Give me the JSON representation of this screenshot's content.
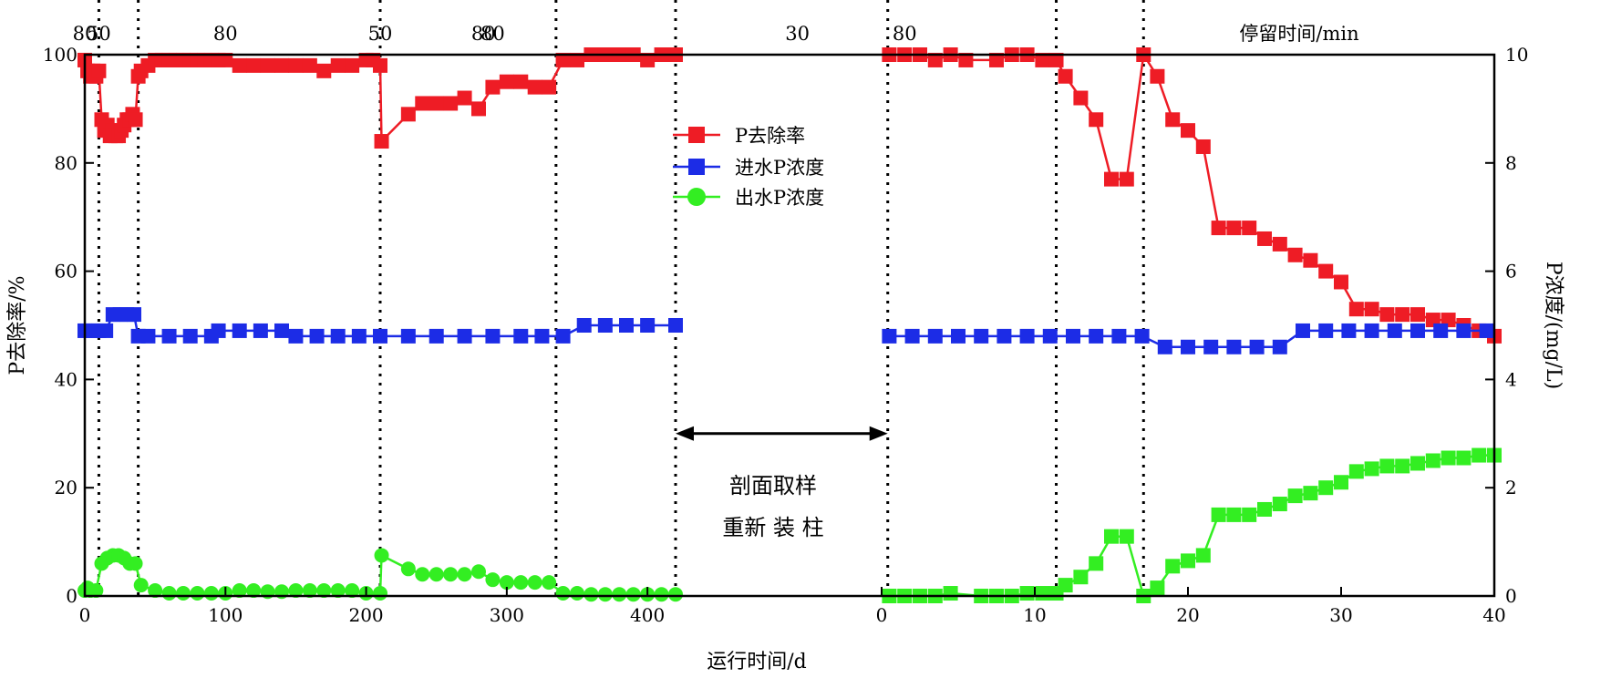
{
  "chart_data": {
    "type": "line",
    "xlabel": "运行时间/d",
    "ylabel_left": "P去除率/%",
    "ylabel_right": "P浓度/(mg/L)",
    "top_axis_title": "停留时间/min",
    "ylim_left": [
      0,
      100
    ],
    "ylim_right": [
      0,
      10
    ],
    "yticks_left": [
      "0",
      "20",
      "40",
      "60",
      "80",
      "100"
    ],
    "yticks_right": [
      "0",
      "2",
      "4",
      "6",
      "8",
      "10"
    ],
    "segments": [
      {
        "name": "stage1",
        "xlim": [
          0,
          420
        ],
        "xticks": [
          "0",
          "100",
          "200",
          "300",
          "400"
        ]
      },
      {
        "name": "stage2",
        "xlim": [
          0,
          40
        ],
        "xticks": [
          "0",
          "10",
          "20",
          "30",
          "40"
        ]
      }
    ],
    "residence_times": [
      {
        "segment": 0,
        "x": 0,
        "label": "80"
      },
      {
        "segment": 0,
        "x": 10,
        "label": "50"
      },
      {
        "segment": 0,
        "x": 100,
        "label": "80"
      },
      {
        "segment": 0,
        "x": 210,
        "label": "50"
      },
      {
        "segment": 0,
        "x": 290,
        "label": "80"
      },
      {
        "segment": 1,
        "x": -26,
        "label": "80"
      },
      {
        "segment": 1,
        "x": -5.5,
        "label": "30"
      },
      {
        "segment": 1,
        "x": 1.5,
        "label": "80"
      }
    ],
    "stage_boundaries": [
      {
        "segment": 0,
        "x": 10
      },
      {
        "segment": 0,
        "x": 38
      },
      {
        "segment": 0,
        "x": 210
      },
      {
        "segment": 0,
        "x": 335
      },
      {
        "segment": 0,
        "x": 420
      },
      {
        "segment": 1,
        "x": 0.4
      },
      {
        "segment": 1,
        "x": 11.4
      },
      {
        "segment": 1,
        "x": 17.1
      }
    ],
    "annotation": {
      "line1": "剖面取样",
      "line2": "重新 装 柱",
      "x_from": 420,
      "x_to": 0.4,
      "y": 30
    },
    "series": [
      {
        "name": "P去除率",
        "axis": "left",
        "color": "#ee1c25",
        "marker": "square",
        "seg1": [
          [
            0,
            99
          ],
          [
            2,
            97
          ],
          [
            4,
            96
          ],
          [
            6,
            97
          ],
          [
            8,
            96
          ],
          [
            10,
            97
          ],
          [
            12,
            88
          ],
          [
            14,
            86
          ],
          [
            16,
            87
          ],
          [
            18,
            85
          ],
          [
            20,
            86
          ],
          [
            22,
            85
          ],
          [
            24,
            85
          ],
          [
            26,
            86
          ],
          [
            28,
            87
          ],
          [
            30,
            88
          ],
          [
            32,
            88
          ],
          [
            34,
            89
          ],
          [
            36,
            88
          ],
          [
            38,
            96
          ],
          [
            40,
            97
          ],
          [
            45,
            98
          ],
          [
            50,
            99
          ],
          [
            55,
            99
          ],
          [
            60,
            99
          ],
          [
            65,
            99
          ],
          [
            70,
            99
          ],
          [
            75,
            99
          ],
          [
            80,
            99
          ],
          [
            85,
            99
          ],
          [
            90,
            99
          ],
          [
            95,
            99
          ],
          [
            100,
            99
          ],
          [
            110,
            98
          ],
          [
            120,
            98
          ],
          [
            130,
            98
          ],
          [
            140,
            98
          ],
          [
            150,
            98
          ],
          [
            160,
            98
          ],
          [
            170,
            97
          ],
          [
            180,
            98
          ],
          [
            190,
            98
          ],
          [
            200,
            99
          ],
          [
            205,
            99
          ],
          [
            210,
            98
          ],
          [
            211,
            84
          ],
          [
            230,
            89
          ],
          [
            240,
            91
          ],
          [
            250,
            91
          ],
          [
            260,
            91
          ],
          [
            270,
            92
          ],
          [
            280,
            90
          ],
          [
            290,
            94
          ],
          [
            300,
            95
          ],
          [
            310,
            95
          ],
          [
            320,
            94
          ],
          [
            330,
            94
          ],
          [
            340,
            99
          ],
          [
            350,
            99
          ],
          [
            360,
            100
          ],
          [
            370,
            100
          ],
          [
            380,
            100
          ],
          [
            390,
            100
          ],
          [
            400,
            99
          ],
          [
            410,
            100
          ],
          [
            420,
            100
          ]
        ],
        "seg2": [
          [
            0.5,
            100
          ],
          [
            1.5,
            100
          ],
          [
            2.5,
            100
          ],
          [
            3.5,
            99
          ],
          [
            4.5,
            100
          ],
          [
            5.5,
            99
          ],
          [
            7.5,
            99
          ],
          [
            8.5,
            100
          ],
          [
            9.5,
            100
          ],
          [
            10.5,
            99
          ],
          [
            11.4,
            99
          ],
          [
            12,
            96
          ],
          [
            13,
            92
          ],
          [
            14,
            88
          ],
          [
            15,
            77
          ],
          [
            16,
            77
          ],
          [
            17.1,
            100
          ],
          [
            18,
            96
          ],
          [
            19,
            88
          ],
          [
            20,
            86
          ],
          [
            21,
            83
          ],
          [
            22,
            68
          ],
          [
            23,
            68
          ],
          [
            24,
            68
          ],
          [
            25,
            66
          ],
          [
            26,
            65
          ],
          [
            27,
            63
          ],
          [
            28,
            62
          ],
          [
            29,
            60
          ],
          [
            30,
            58
          ],
          [
            31,
            53
          ],
          [
            32,
            53
          ],
          [
            33,
            52
          ],
          [
            34,
            52
          ],
          [
            35,
            52
          ],
          [
            36,
            51
          ],
          [
            37,
            51
          ],
          [
            38,
            50
          ],
          [
            39,
            49
          ],
          [
            40,
            48
          ]
        ]
      },
      {
        "name": "进水P浓度",
        "axis": "right",
        "color": "#1c2ce6",
        "marker": "square",
        "seg1": [
          [
            0,
            4.9
          ],
          [
            5,
            4.9
          ],
          [
            10,
            4.9
          ],
          [
            15,
            4.9
          ],
          [
            20,
            5.2
          ],
          [
            25,
            5.2
          ],
          [
            30,
            5.2
          ],
          [
            35,
            5.2
          ],
          [
            38,
            4.8
          ],
          [
            45,
            4.8
          ],
          [
            60,
            4.8
          ],
          [
            75,
            4.8
          ],
          [
            90,
            4.8
          ],
          [
            95,
            4.9
          ],
          [
            110,
            4.9
          ],
          [
            125,
            4.9
          ],
          [
            140,
            4.9
          ],
          [
            150,
            4.8
          ],
          [
            165,
            4.8
          ],
          [
            180,
            4.8
          ],
          [
            195,
            4.8
          ],
          [
            210,
            4.8
          ],
          [
            230,
            4.8
          ],
          [
            250,
            4.8
          ],
          [
            270,
            4.8
          ],
          [
            290,
            4.8
          ],
          [
            310,
            4.8
          ],
          [
            325,
            4.8
          ],
          [
            340,
            4.8
          ],
          [
            355,
            5.0
          ],
          [
            370,
            5.0
          ],
          [
            385,
            5.0
          ],
          [
            400,
            5.0
          ],
          [
            420,
            5.0
          ]
        ],
        "seg2": [
          [
            0.5,
            4.8
          ],
          [
            2,
            4.8
          ],
          [
            3.5,
            4.8
          ],
          [
            5,
            4.8
          ],
          [
            6.5,
            4.8
          ],
          [
            8,
            4.8
          ],
          [
            9.5,
            4.8
          ],
          [
            11,
            4.8
          ],
          [
            12.5,
            4.8
          ],
          [
            14,
            4.8
          ],
          [
            15.5,
            4.8
          ],
          [
            17,
            4.8
          ],
          [
            18.5,
            4.6
          ],
          [
            20,
            4.6
          ],
          [
            21.5,
            4.6
          ],
          [
            23,
            4.6
          ],
          [
            24.5,
            4.6
          ],
          [
            26,
            4.6
          ],
          [
            27.5,
            4.9
          ],
          [
            29,
            4.9
          ],
          [
            30.5,
            4.9
          ],
          [
            32,
            4.9
          ],
          [
            33.5,
            4.9
          ],
          [
            35,
            4.9
          ],
          [
            36.5,
            4.9
          ],
          [
            38,
            4.9
          ],
          [
            39.5,
            4.9
          ]
        ]
      },
      {
        "name": "出水P浓度",
        "axis": "right",
        "color": "#33ee22",
        "marker": "circle",
        "seg1": [
          [
            0,
            0.1
          ],
          [
            2,
            0.15
          ],
          [
            4,
            0.1
          ],
          [
            8,
            0.1
          ],
          [
            12,
            0.6
          ],
          [
            16,
            0.7
          ],
          [
            20,
            0.75
          ],
          [
            24,
            0.75
          ],
          [
            28,
            0.7
          ],
          [
            32,
            0.6
          ],
          [
            36,
            0.6
          ],
          [
            40,
            0.2
          ],
          [
            50,
            0.1
          ],
          [
            60,
            0.05
          ],
          [
            70,
            0.05
          ],
          [
            80,
            0.05
          ],
          [
            90,
            0.05
          ],
          [
            100,
            0.05
          ],
          [
            110,
            0.1
          ],
          [
            120,
            0.1
          ],
          [
            130,
            0.08
          ],
          [
            140,
            0.08
          ],
          [
            150,
            0.1
          ],
          [
            160,
            0.1
          ],
          [
            170,
            0.1
          ],
          [
            180,
            0.1
          ],
          [
            190,
            0.1
          ],
          [
            200,
            0.05
          ],
          [
            210,
            0.05
          ],
          [
            211,
            0.75
          ],
          [
            230,
            0.5
          ],
          [
            240,
            0.4
          ],
          [
            250,
            0.4
          ],
          [
            260,
            0.4
          ],
          [
            270,
            0.4
          ],
          [
            280,
            0.45
          ],
          [
            290,
            0.3
          ],
          [
            300,
            0.25
          ],
          [
            310,
            0.25
          ],
          [
            320,
            0.25
          ],
          [
            330,
            0.25
          ],
          [
            340,
            0.05
          ],
          [
            350,
            0.05
          ],
          [
            360,
            0.03
          ],
          [
            370,
            0.03
          ],
          [
            380,
            0.03
          ],
          [
            390,
            0.03
          ],
          [
            400,
            0.03
          ],
          [
            410,
            0.03
          ],
          [
            420,
            0.03
          ]
        ]
      },
      {
        "name": "出水P浓度",
        "axis": "right",
        "color": "#33ee22",
        "marker": "square",
        "seg2": [
          [
            0.5,
            0.0
          ],
          [
            1.5,
            0.0
          ],
          [
            2.5,
            0.0
          ],
          [
            3.5,
            0.0
          ],
          [
            4.5,
            0.05
          ],
          [
            6.5,
            0.0
          ],
          [
            7.5,
            0.0
          ],
          [
            8.5,
            0.0
          ],
          [
            9.5,
            0.05
          ],
          [
            10.5,
            0.05
          ],
          [
            11.4,
            0.05
          ],
          [
            12,
            0.2
          ],
          [
            13,
            0.35
          ],
          [
            14,
            0.6
          ],
          [
            15,
            1.1
          ],
          [
            16,
            1.1
          ],
          [
            17.1,
            0.0
          ],
          [
            18,
            0.15
          ],
          [
            19,
            0.55
          ],
          [
            20,
            0.65
          ],
          [
            21,
            0.75
          ],
          [
            22,
            1.5
          ],
          [
            23,
            1.5
          ],
          [
            24,
            1.5
          ],
          [
            25,
            1.6
          ],
          [
            26,
            1.7
          ],
          [
            27,
            1.85
          ],
          [
            28,
            1.9
          ],
          [
            29,
            2.0
          ],
          [
            30,
            2.1
          ],
          [
            31,
            2.3
          ],
          [
            32,
            2.35
          ],
          [
            33,
            2.4
          ],
          [
            34,
            2.4
          ],
          [
            35,
            2.45
          ],
          [
            36,
            2.5
          ],
          [
            37,
            2.55
          ],
          [
            38,
            2.55
          ],
          [
            39,
            2.6
          ],
          [
            40,
            2.6
          ]
        ]
      }
    ]
  }
}
